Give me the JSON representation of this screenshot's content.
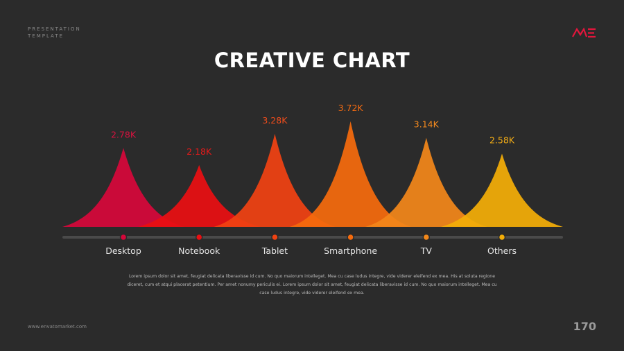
{
  "header": {
    "subtitle_line1": "PRESENTATION",
    "subtitle_line2": "TEMPLATE",
    "logo_icon": "me-logo-icon",
    "title": "CREATIVE CHART"
  },
  "chart_data": {
    "type": "area",
    "categories": [
      "Desktop",
      "Notebook",
      "Tablet",
      "Smartphone",
      "TV",
      "Others"
    ],
    "values": [
      2.78,
      2.18,
      3.28,
      3.72,
      3.14,
      2.58
    ],
    "value_labels": [
      "2.78K",
      "2.18K",
      "3.28K",
      "3.72K",
      "3.14K",
      "2.58K"
    ],
    "colors": [
      "#d6073a",
      "#ea0f12",
      "#f04212",
      "#f56b0d",
      "#f2871a",
      "#f3ad08"
    ],
    "label_colors": [
      "#d8123f",
      "#e81a1a",
      "#ef4d1c",
      "#f36b12",
      "#f58a1e",
      "#f2ac16"
    ]
  },
  "description": "Lorem ipsum dolor sit amet, feugiat delicata liberavisse id cum. No quo maiorum intelleget. Mea cu case ludus integre, vide viderer eleifend ex mea. His at soluta regione diceret, cum et atqui placerat petentium. Per amet nonumy periculis ei. Lorem ipsum dolor sit amet, feugiat delicata liberavisse id cum. No quo maiorum intelleget. Mea cu case ludus integre, vide viderer eleifend ex mea.",
  "footer": {
    "url": "www.envatomarket.com",
    "page_number": "170"
  }
}
